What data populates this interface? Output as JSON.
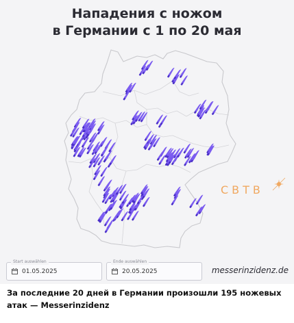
{
  "title": "Нападения с ножом\nв Германии с 1 по 20 мая",
  "watermark": "СВТВ",
  "filters": {
    "start_label": "Start auswählen",
    "start_value": "01.05.2025",
    "end_label": "Ende auswählen",
    "end_value": "20.05.2025"
  },
  "source_site": "messerinzidenz.de",
  "caption": "За последние 20 дней в Германии произошли 195 ножевых атак — Messerinzidenz",
  "marker_icon": "knife-icon",
  "colors": {
    "marker": "#7b5cf0",
    "marker_dark": "#4a2fc9",
    "border": "#c8c8cc",
    "watermark": "#f0a860"
  }
}
